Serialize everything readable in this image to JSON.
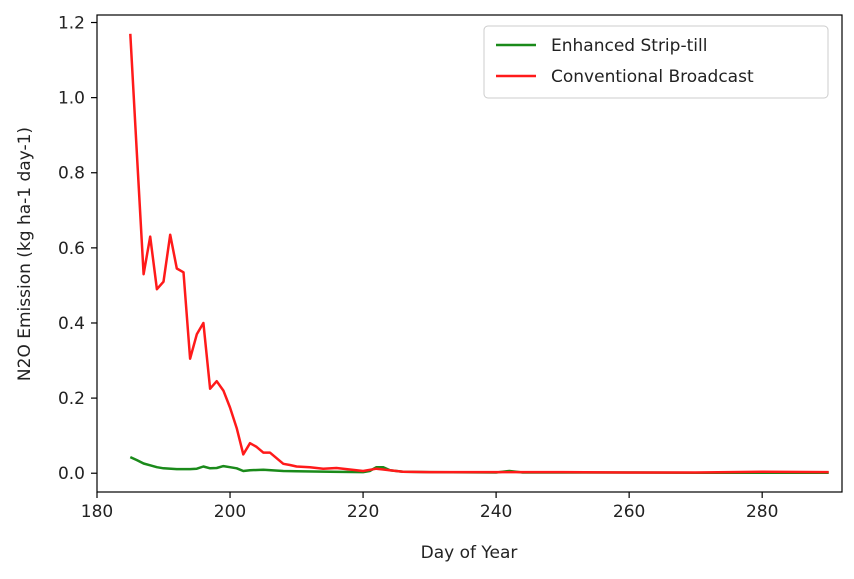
{
  "chart_data": {
    "type": "line",
    "title": "",
    "xlabel": "Day of Year",
    "ylabel": "N2O Emission (kg ha-1 day-1)",
    "xlim": [
      180,
      292
    ],
    "ylim": [
      -0.05,
      1.22
    ],
    "xticks": [
      180,
      200,
      220,
      240,
      260,
      280
    ],
    "yticks": [
      0.0,
      0.2,
      0.4,
      0.6,
      0.8,
      1.0,
      1.2
    ],
    "xtick_labels": [
      "180",
      "200",
      "220",
      "240",
      "260",
      "280"
    ],
    "ytick_labels": [
      "0.0",
      "0.2",
      "0.4",
      "0.6",
      "0.8",
      "1.0",
      "1.2"
    ],
    "grid": false,
    "legend_position": "top-right",
    "series": [
      {
        "name": "Enhanced Strip-till",
        "color": "#1a8a1a",
        "x": [
          185,
          186,
          187,
          188,
          189,
          190,
          192,
          194,
          195,
          196,
          197,
          198,
          199,
          200,
          201,
          202,
          203,
          205,
          208,
          210,
          215,
          220,
          221,
          222,
          223,
          224,
          226,
          230,
          240,
          242,
          244,
          250,
          260,
          270,
          280,
          290
        ],
        "y": [
          0.043,
          0.035,
          0.026,
          0.021,
          0.016,
          0.013,
          0.011,
          0.011,
          0.012,
          0.018,
          0.013,
          0.014,
          0.019,
          0.016,
          0.013,
          0.006,
          0.008,
          0.009,
          0.006,
          0.005,
          0.004,
          0.003,
          0.006,
          0.016,
          0.016,
          0.008,
          0.004,
          0.003,
          0.002,
          0.006,
          0.002,
          0.002,
          0.002,
          0.001,
          0.001,
          0.001
        ]
      },
      {
        "name": "Conventional Broadcast",
        "color": "#ff1a1a",
        "x": [
          185,
          186,
          187,
          188,
          189,
          190,
          191,
          192,
          193,
          194,
          195,
          196,
          197,
          198,
          199,
          200,
          201,
          202,
          203,
          204,
          205,
          206,
          207,
          208,
          209,
          210,
          212,
          214,
          216,
          218,
          220,
          222,
          224,
          226,
          230,
          240,
          250,
          260,
          270,
          280,
          290
        ],
        "y": [
          1.17,
          0.85,
          0.53,
          0.63,
          0.49,
          0.51,
          0.635,
          0.545,
          0.535,
          0.305,
          0.37,
          0.4,
          0.225,
          0.245,
          0.22,
          0.175,
          0.12,
          0.05,
          0.08,
          0.07,
          0.055,
          0.055,
          0.04,
          0.025,
          0.022,
          0.018,
          0.016,
          0.012,
          0.014,
          0.01,
          0.006,
          0.012,
          0.008,
          0.004,
          0.003,
          0.003,
          0.003,
          0.002,
          0.002,
          0.004,
          0.003
        ]
      }
    ]
  }
}
